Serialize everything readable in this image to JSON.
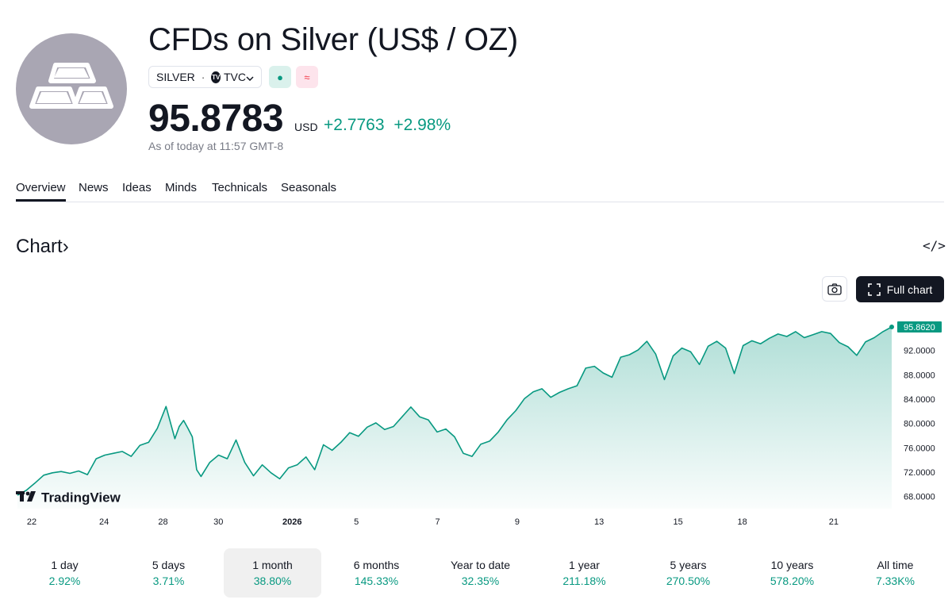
{
  "header": {
    "title": "CFDs on Silver (US$ / OZ)",
    "symbol": "SILVER",
    "separator": "·",
    "exchange": "TVC",
    "exchange_logo": "TV",
    "badge_green": "●",
    "badge_pink": "≈"
  },
  "quote": {
    "price": "95.8783",
    "currency": "USD",
    "change": "+2.7763",
    "change_pct": "+2.98%",
    "as_of": "As of today at 11:57 GMT-8"
  },
  "tabs": [
    {
      "label": "Overview"
    },
    {
      "label": "News"
    },
    {
      "label": "Ideas"
    },
    {
      "label": "Minds"
    },
    {
      "label": "Technicals"
    },
    {
      "label": "Seasonals"
    }
  ],
  "chart_section": {
    "heading": "Chart",
    "heading_arrow": "›",
    "embed_label": "</>",
    "full_chart_label": "Full chart",
    "watermark": "TradingView"
  },
  "chart_data": {
    "type": "area",
    "title": "",
    "xlabel": "",
    "ylabel": "",
    "ylim": [
      66.0,
      97.3
    ],
    "y_ticks": [
      "92.0000",
      "88.0000",
      "84.0000",
      "80.0000",
      "76.0000",
      "72.0000",
      "68.0000"
    ],
    "y_tick_values": [
      92,
      88,
      84,
      80,
      76,
      72,
      68
    ],
    "x_tick_labels": [
      "22",
      "24",
      "28",
      "30",
      "2026",
      "5",
      "7",
      "9",
      "13",
      "15",
      "18",
      "21"
    ],
    "x_tick_index": [
      0.0,
      0.098,
      0.178,
      0.253,
      0.353,
      0.44,
      0.55,
      0.658,
      0.769,
      0.876,
      0.963,
      1.087
    ],
    "last_value_label": "95.8620",
    "last_value": 95.862,
    "line_color": "#089981",
    "series": [
      {
        "name": "SILVER",
        "x": [
          0,
          0.01,
          0.02,
          0.03,
          0.04,
          0.05,
          0.06,
          0.07,
          0.08,
          0.09,
          0.1,
          0.11,
          0.12,
          0.13,
          0.14,
          0.15,
          0.16,
          0.17,
          0.18,
          0.185,
          0.19,
          0.195,
          0.2,
          0.205,
          0.21,
          0.22,
          0.23,
          0.24,
          0.25,
          0.26,
          0.27,
          0.28,
          0.29,
          0.3,
          0.31,
          0.32,
          0.33,
          0.34,
          0.35,
          0.36,
          0.37,
          0.38,
          0.39,
          0.4,
          0.41,
          0.42,
          0.43,
          0.44,
          0.45,
          0.46,
          0.47,
          0.48,
          0.49,
          0.5,
          0.51,
          0.52,
          0.53,
          0.54,
          0.55,
          0.56,
          0.57,
          0.58,
          0.59,
          0.6,
          0.61,
          0.62,
          0.63,
          0.64,
          0.65,
          0.66,
          0.67,
          0.68,
          0.69,
          0.7,
          0.71,
          0.72,
          0.73,
          0.74,
          0.75,
          0.76,
          0.77,
          0.78,
          0.79,
          0.8,
          0.81,
          0.82,
          0.83,
          0.84,
          0.85,
          0.86,
          0.87,
          0.88,
          0.89,
          0.9,
          0.91,
          0.92,
          0.93,
          0.94,
          0.95,
          0.96,
          0.97,
          0.98,
          0.99,
          1.0
        ],
        "values": [
          68.2,
          69.0,
          70.2,
          71.5,
          71.9,
          72.1,
          71.8,
          72.2,
          71.6,
          74.2,
          74.8,
          75.1,
          75.4,
          74.6,
          76.4,
          76.9,
          79.2,
          82.8,
          77.5,
          79.5,
          80.5,
          79.2,
          77.8,
          72.4,
          71.3,
          73.6,
          74.8,
          74.2,
          77.3,
          73.6,
          71.4,
          73.2,
          71.9,
          70.9,
          72.7,
          73.2,
          74.5,
          72.4,
          76.5,
          75.6,
          76.9,
          78.5,
          77.9,
          79.4,
          80.1,
          79.0,
          79.5,
          81.1,
          82.7,
          81.1,
          80.6,
          78.6,
          79.1,
          77.8,
          75.1,
          74.6,
          76.6,
          77.1,
          78.6,
          80.6,
          82.1,
          84.1,
          85.2,
          85.7,
          84.3,
          85.1,
          85.7,
          86.2,
          89.1,
          89.4,
          88.3,
          87.6,
          90.9,
          91.3,
          92.1,
          93.5,
          91.4,
          87.2,
          91.1,
          92.4,
          91.8,
          89.7,
          92.7,
          93.5,
          92.4,
          88.2,
          92.8,
          93.6,
          93.1,
          94.0,
          94.7,
          94.3,
          95.1,
          94.1,
          94.6,
          95.1,
          94.8,
          93.3,
          92.6,
          91.2,
          93.4,
          94.1,
          95.1,
          95.86
        ]
      }
    ]
  },
  "periods": [
    {
      "label": "1 day",
      "value": "2.92%"
    },
    {
      "label": "5 days",
      "value": "3.71%"
    },
    {
      "label": "1 month",
      "value": "38.80%"
    },
    {
      "label": "6 months",
      "value": "145.33%"
    },
    {
      "label": "Year to date",
      "value": "32.35%"
    },
    {
      "label": "1 year",
      "value": "211.18%"
    },
    {
      "label": "5 years",
      "value": "270.50%"
    },
    {
      "label": "10 years",
      "value": "578.20%"
    },
    {
      "label": "All time",
      "value": "7.33K%"
    }
  ],
  "active_period": "1 month",
  "active_tab": "Overview",
  "colors": {
    "accent_green": "#089981",
    "text": "#131722",
    "muted": "#787b86",
    "logo_bg": "#a9a6b3"
  }
}
